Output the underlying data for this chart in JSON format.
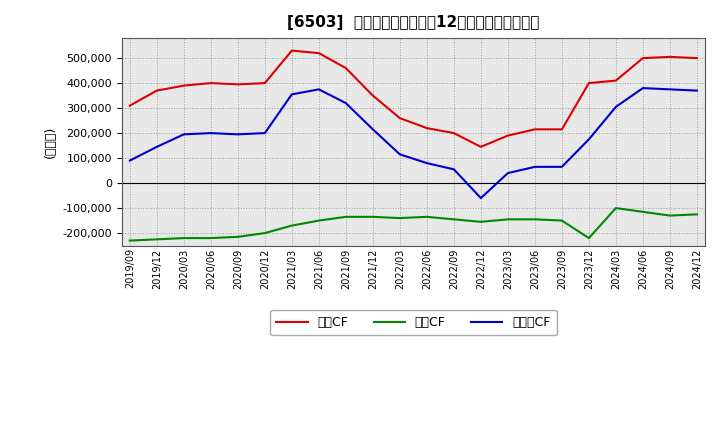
{
  "title": "[6503]  キャッシュフローの12か月移動合計の推移",
  "ylabel": "(百万円)",
  "ylim": [
    -250000,
    580000
  ],
  "yticks": [
    -200000,
    -100000,
    0,
    100000,
    200000,
    300000,
    400000,
    500000
  ],
  "background_color": "#ffffff",
  "plot_bg_color": "#e8e8e8",
  "grid_color": "#888888",
  "line_zero_color": "#000000",
  "dates": [
    "2019/09",
    "2019/12",
    "2020/03",
    "2020/06",
    "2020/09",
    "2020/12",
    "2021/03",
    "2021/06",
    "2021/09",
    "2021/12",
    "2022/03",
    "2022/06",
    "2022/09",
    "2022/12",
    "2023/03",
    "2023/06",
    "2023/09",
    "2023/12",
    "2024/03",
    "2024/06",
    "2024/09",
    "2024/12"
  ],
  "operating_cf": [
    310000,
    370000,
    390000,
    400000,
    395000,
    400000,
    530000,
    520000,
    460000,
    350000,
    260000,
    220000,
    200000,
    145000,
    190000,
    215000,
    215000,
    400000,
    410000,
    500000,
    505000,
    500000
  ],
  "investing_cf": [
    -230000,
    -225000,
    -220000,
    -220000,
    -215000,
    -200000,
    -170000,
    -150000,
    -135000,
    -135000,
    -140000,
    -135000,
    -145000,
    -155000,
    -145000,
    -145000,
    -150000,
    -220000,
    -100000,
    -115000,
    -130000,
    -125000
  ],
  "free_cf": [
    90000,
    145000,
    195000,
    200000,
    195000,
    200000,
    355000,
    375000,
    320000,
    215000,
    115000,
    80000,
    55000,
    -60000,
    40000,
    65000,
    65000,
    175000,
    305000,
    380000,
    375000,
    370000
  ],
  "operating_color": "#dd0000",
  "investing_color": "#008800",
  "free_color": "#0000cc",
  "legend_labels": [
    "営業CF",
    "投資CF",
    "フリーCF"
  ]
}
